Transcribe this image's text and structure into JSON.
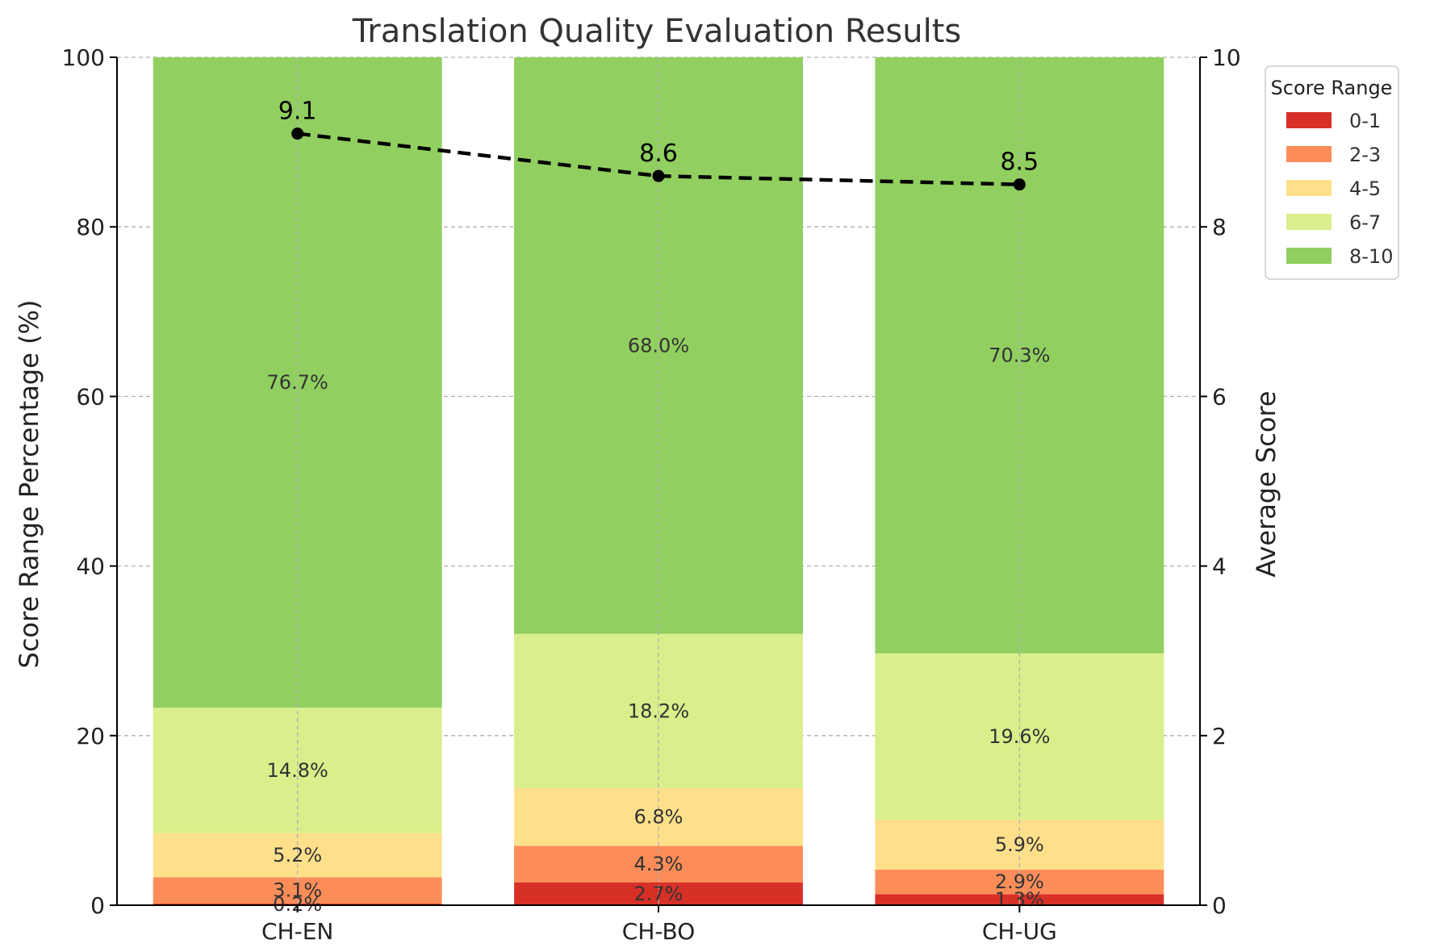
{
  "chart_data": {
    "type": "bar",
    "stacked": true,
    "title": "Translation Quality Evaluation Results",
    "xlabel": "",
    "ylabel": "Score Range Percentage (%)",
    "y2label": "Average Score",
    "ylim": [
      0,
      100
    ],
    "y2lim": [
      0,
      10
    ],
    "yticks": [
      0,
      20,
      40,
      60,
      80,
      100
    ],
    "y2ticks": [
      0,
      2,
      4,
      6,
      8,
      10
    ],
    "categories": [
      "CH-EN",
      "CH-BO",
      "CH-UG"
    ],
    "series": [
      {
        "name": "0-1",
        "color": "#d73027",
        "values": [
          0.2,
          2.7,
          1.3
        ],
        "labels": [
          "0.2%",
          "2.7%",
          "1.3%"
        ]
      },
      {
        "name": "2-3",
        "color": "#fc8d59",
        "values": [
          3.1,
          4.3,
          2.9
        ],
        "labels": [
          "3.1%",
          "4.3%",
          "2.9%"
        ]
      },
      {
        "name": "4-5",
        "color": "#fee08b",
        "values": [
          5.2,
          6.8,
          5.9
        ],
        "labels": [
          "5.2%",
          "6.8%",
          "5.9%"
        ]
      },
      {
        "name": "6-7",
        "color": "#d9ef8b",
        "values": [
          14.8,
          18.2,
          19.6
        ],
        "labels": [
          "14.8%",
          "18.2%",
          "19.6%"
        ]
      },
      {
        "name": "8-10",
        "color": "#91cf60",
        "values": [
          76.7,
          68.0,
          70.3
        ],
        "labels": [
          "76.7%",
          "68.0%",
          "70.3%"
        ]
      }
    ],
    "average_scores": {
      "values": [
        9.1,
        8.6,
        8.5
      ],
      "labels": [
        "9.1",
        "8.6",
        "8.5"
      ],
      "style": "dashed black line with markers",
      "axis": "right"
    },
    "legend": {
      "title": "Score Range",
      "placement": "outside top-right"
    },
    "grid": true
  }
}
